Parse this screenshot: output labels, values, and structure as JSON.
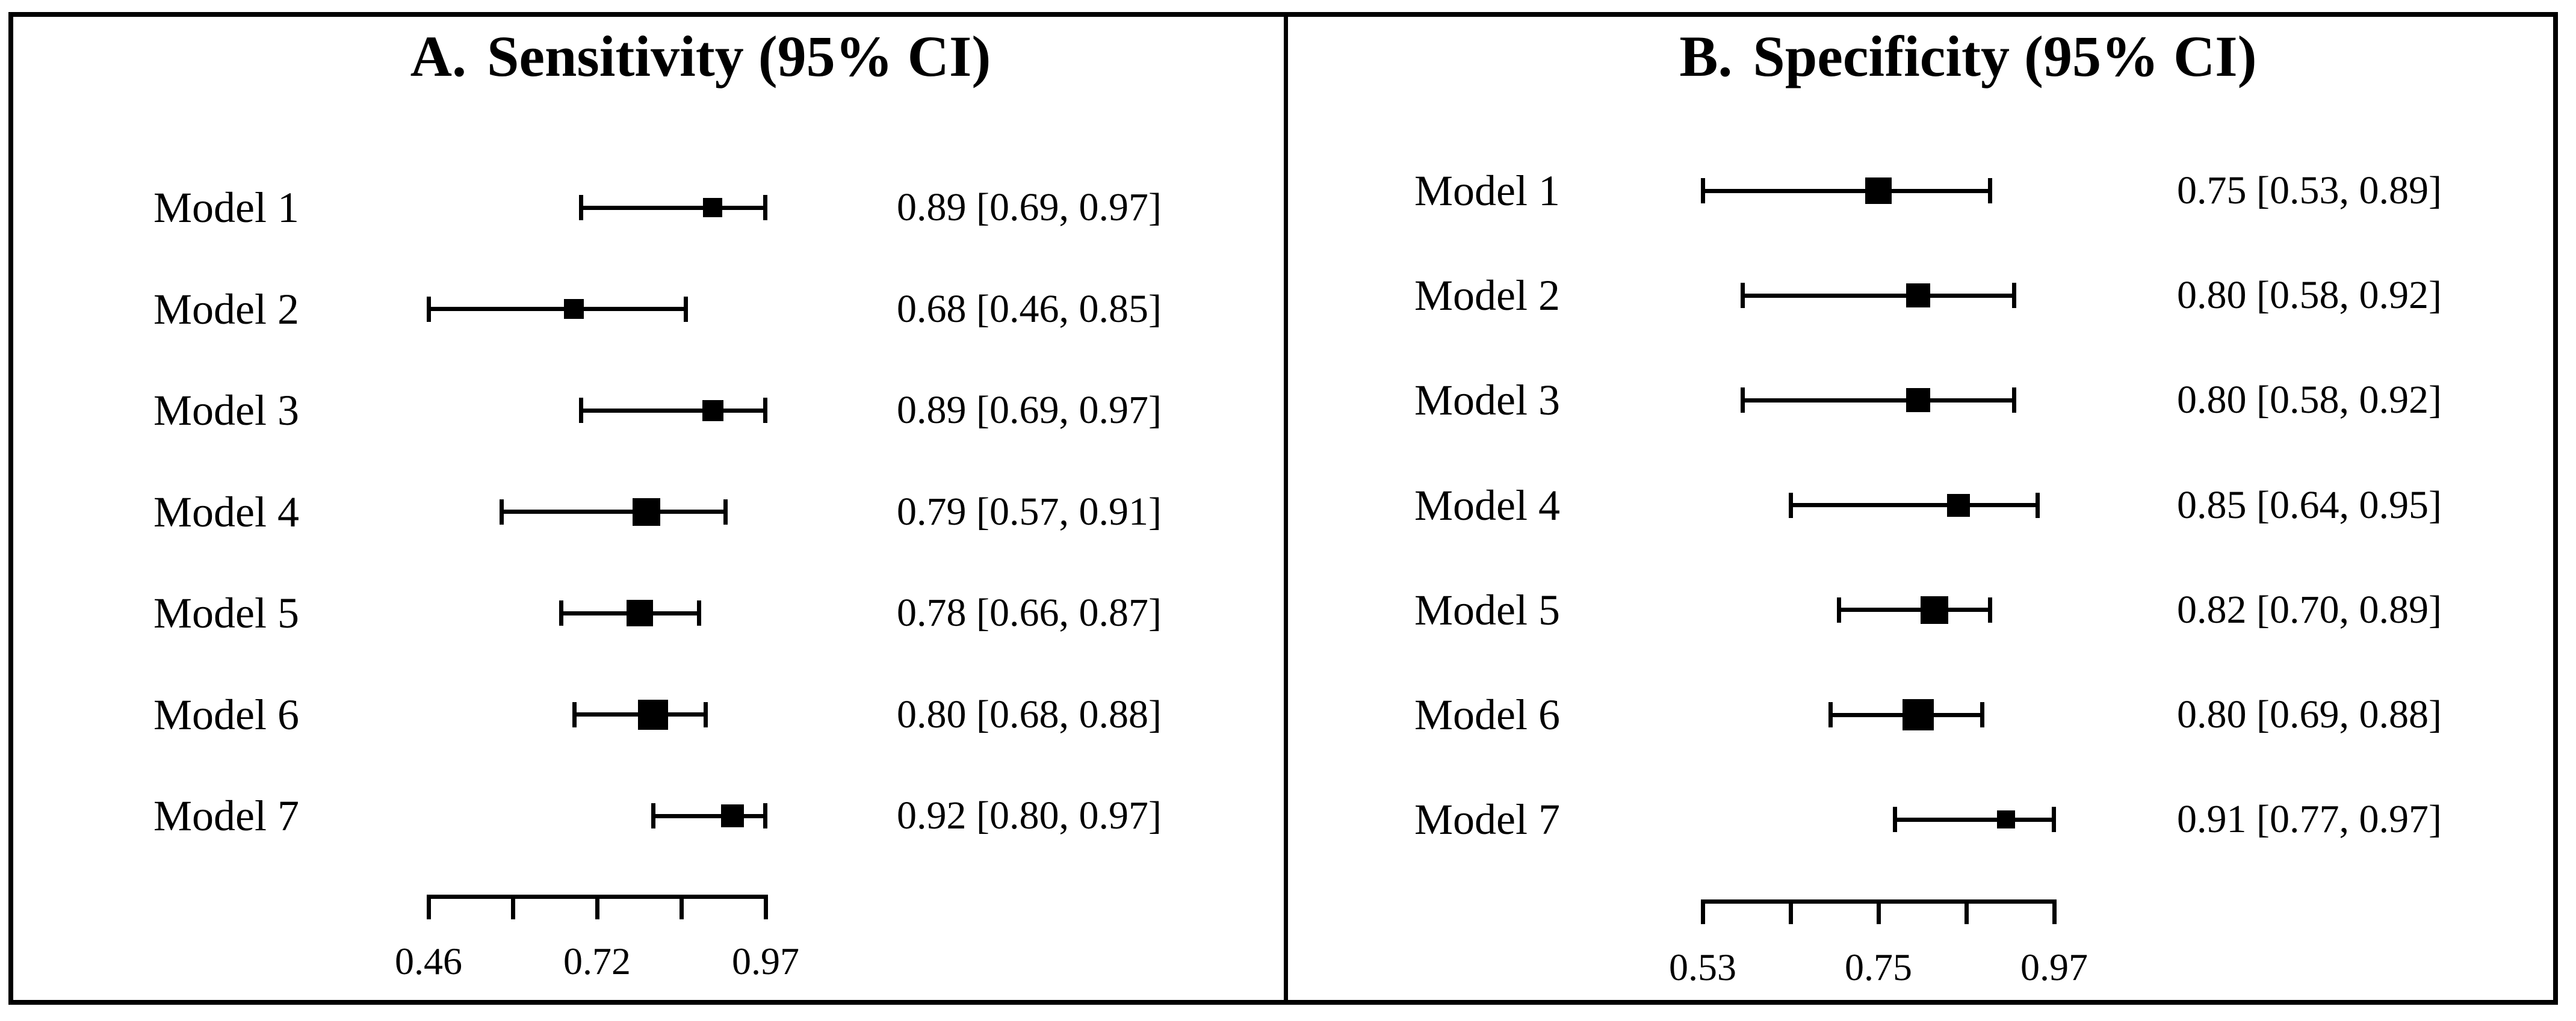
{
  "colors": {
    "ink": "#000000",
    "background": "#ffffff"
  },
  "chart_data": [
    {
      "type": "forest",
      "panel_letter": "A.",
      "title": "Sensitivity (95% CI)",
      "categories": [
        "Model 1",
        "Model 2",
        "Model 3",
        "Model 4",
        "Model 5",
        "Model 6",
        "Model 7"
      ],
      "estimates": [
        0.89,
        0.68,
        0.89,
        0.79,
        0.78,
        0.8,
        0.92
      ],
      "ci_low": [
        0.69,
        0.46,
        0.69,
        0.57,
        0.66,
        0.68,
        0.8
      ],
      "ci_high": [
        0.97,
        0.85,
        0.97,
        0.91,
        0.87,
        0.88,
        0.97
      ],
      "value_labels": [
        "0.89 [0.69, 0.97]",
        "0.68 [0.46, 0.85]",
        "0.89 [0.69, 0.97]",
        "0.79 [0.57, 0.91]",
        "0.78 [0.66, 0.87]",
        "0.80 [0.68, 0.88]",
        "0.92 [0.80, 0.97]"
      ],
      "xlim": [
        0.46,
        0.97
      ],
      "n_ticks": 5,
      "xtick_labels": [
        "0.46",
        "0.72",
        "0.97"
      ],
      "marker_sizes_px": [
        32,
        33,
        35,
        46,
        44,
        50,
        38
      ],
      "legend": "none",
      "grid": "off"
    },
    {
      "type": "forest",
      "panel_letter": "B.",
      "title": "Specificity (95% CI)",
      "categories": [
        "Model 1",
        "Model 2",
        "Model 3",
        "Model 4",
        "Model 5",
        "Model 6",
        "Model 7"
      ],
      "estimates": [
        0.75,
        0.8,
        0.8,
        0.85,
        0.82,
        0.8,
        0.91
      ],
      "ci_low": [
        0.53,
        0.58,
        0.58,
        0.64,
        0.7,
        0.69,
        0.77
      ],
      "ci_high": [
        0.89,
        0.92,
        0.92,
        0.95,
        0.89,
        0.88,
        0.97
      ],
      "value_labels": [
        "0.75 [0.53, 0.89]",
        "0.80 [0.58, 0.92]",
        "0.80 [0.58, 0.92]",
        "0.85 [0.64, 0.95]",
        "0.82 [0.70, 0.89]",
        "0.80 [0.69, 0.88]",
        "0.91 [0.77, 0.97]"
      ],
      "xlim": [
        0.53,
        0.97
      ],
      "n_ticks": 5,
      "xtick_labels": [
        "0.53",
        "0.75",
        "0.97"
      ],
      "marker_sizes_px": [
        44,
        40,
        40,
        38,
        46,
        52,
        30
      ],
      "legend": "none",
      "grid": "off"
    }
  ]
}
